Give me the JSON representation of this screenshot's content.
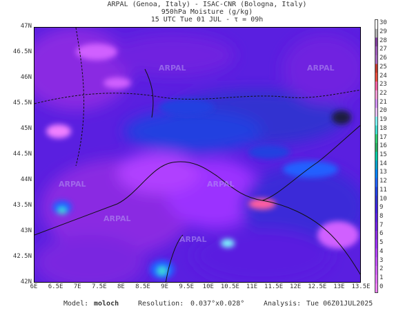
{
  "header": {
    "line1": "ARPAL (Genoa, Italy)  -  ISAC-CNR (Bologna, Italy)",
    "line2": "950hPa Moisture (g/kg)",
    "line3": "15 UTC Tue 01 JUL  -  τ = 09h"
  },
  "map": {
    "lat_ticks": [
      "47N",
      "46.5N",
      "46N",
      "45.5N",
      "45N",
      "44.5N",
      "44N",
      "43.5N",
      "43N",
      "42.5N",
      "42N"
    ],
    "lon_ticks": [
      "6E",
      "6.5E",
      "7E",
      "7.5E",
      "8E",
      "8.5E",
      "9E",
      "9.5E",
      "10E",
      "10.5E",
      "11E",
      "11.5E",
      "12E",
      "12.5E",
      "13E",
      "13.5E"
    ],
    "watermark": "ARPAL",
    "background_color": "#5a1fe0"
  },
  "colorbar": {
    "labels": [
      "30",
      "29",
      "28",
      "27",
      "26",
      "25",
      "24",
      "23",
      "22",
      "21",
      "20",
      "19",
      "18",
      "17",
      "16",
      "15",
      "14",
      "13",
      "12",
      "11",
      "10",
      "9",
      "8",
      "7",
      "6",
      "5",
      "4",
      "3",
      "2",
      "1",
      "0"
    ],
    "colors": [
      "#ffffff",
      "#b0b0b0",
      "#7d3c98",
      "#9b59b6",
      "#a569bd",
      "#c0392b",
      "#e74c3c",
      "#ff5fa0",
      "#ff9ad5",
      "#d291ff",
      "#e8c0ff",
      "#80ffff",
      "#40e0d0",
      "#2ecc71",
      "#27ae60",
      "#00c8a0",
      "#00a0c8",
      "#0080ff",
      "#2060ff",
      "#2040e0",
      "#3030d0",
      "#4020e0",
      "#5a1fe0",
      "#7020e0",
      "#8a2be2",
      "#9b30ff",
      "#b040ff",
      "#c050ff",
      "#d060ff",
      "#e070ff",
      "#f080ff"
    ]
  },
  "footer": {
    "model_label": "Model:",
    "model_value": "moloch",
    "resolution_label": "Resolution:",
    "resolution_value": "0.037°x0.028°",
    "analysis_label": "Analysis:",
    "analysis_value": "Tue 06Z01JUL2025"
  }
}
